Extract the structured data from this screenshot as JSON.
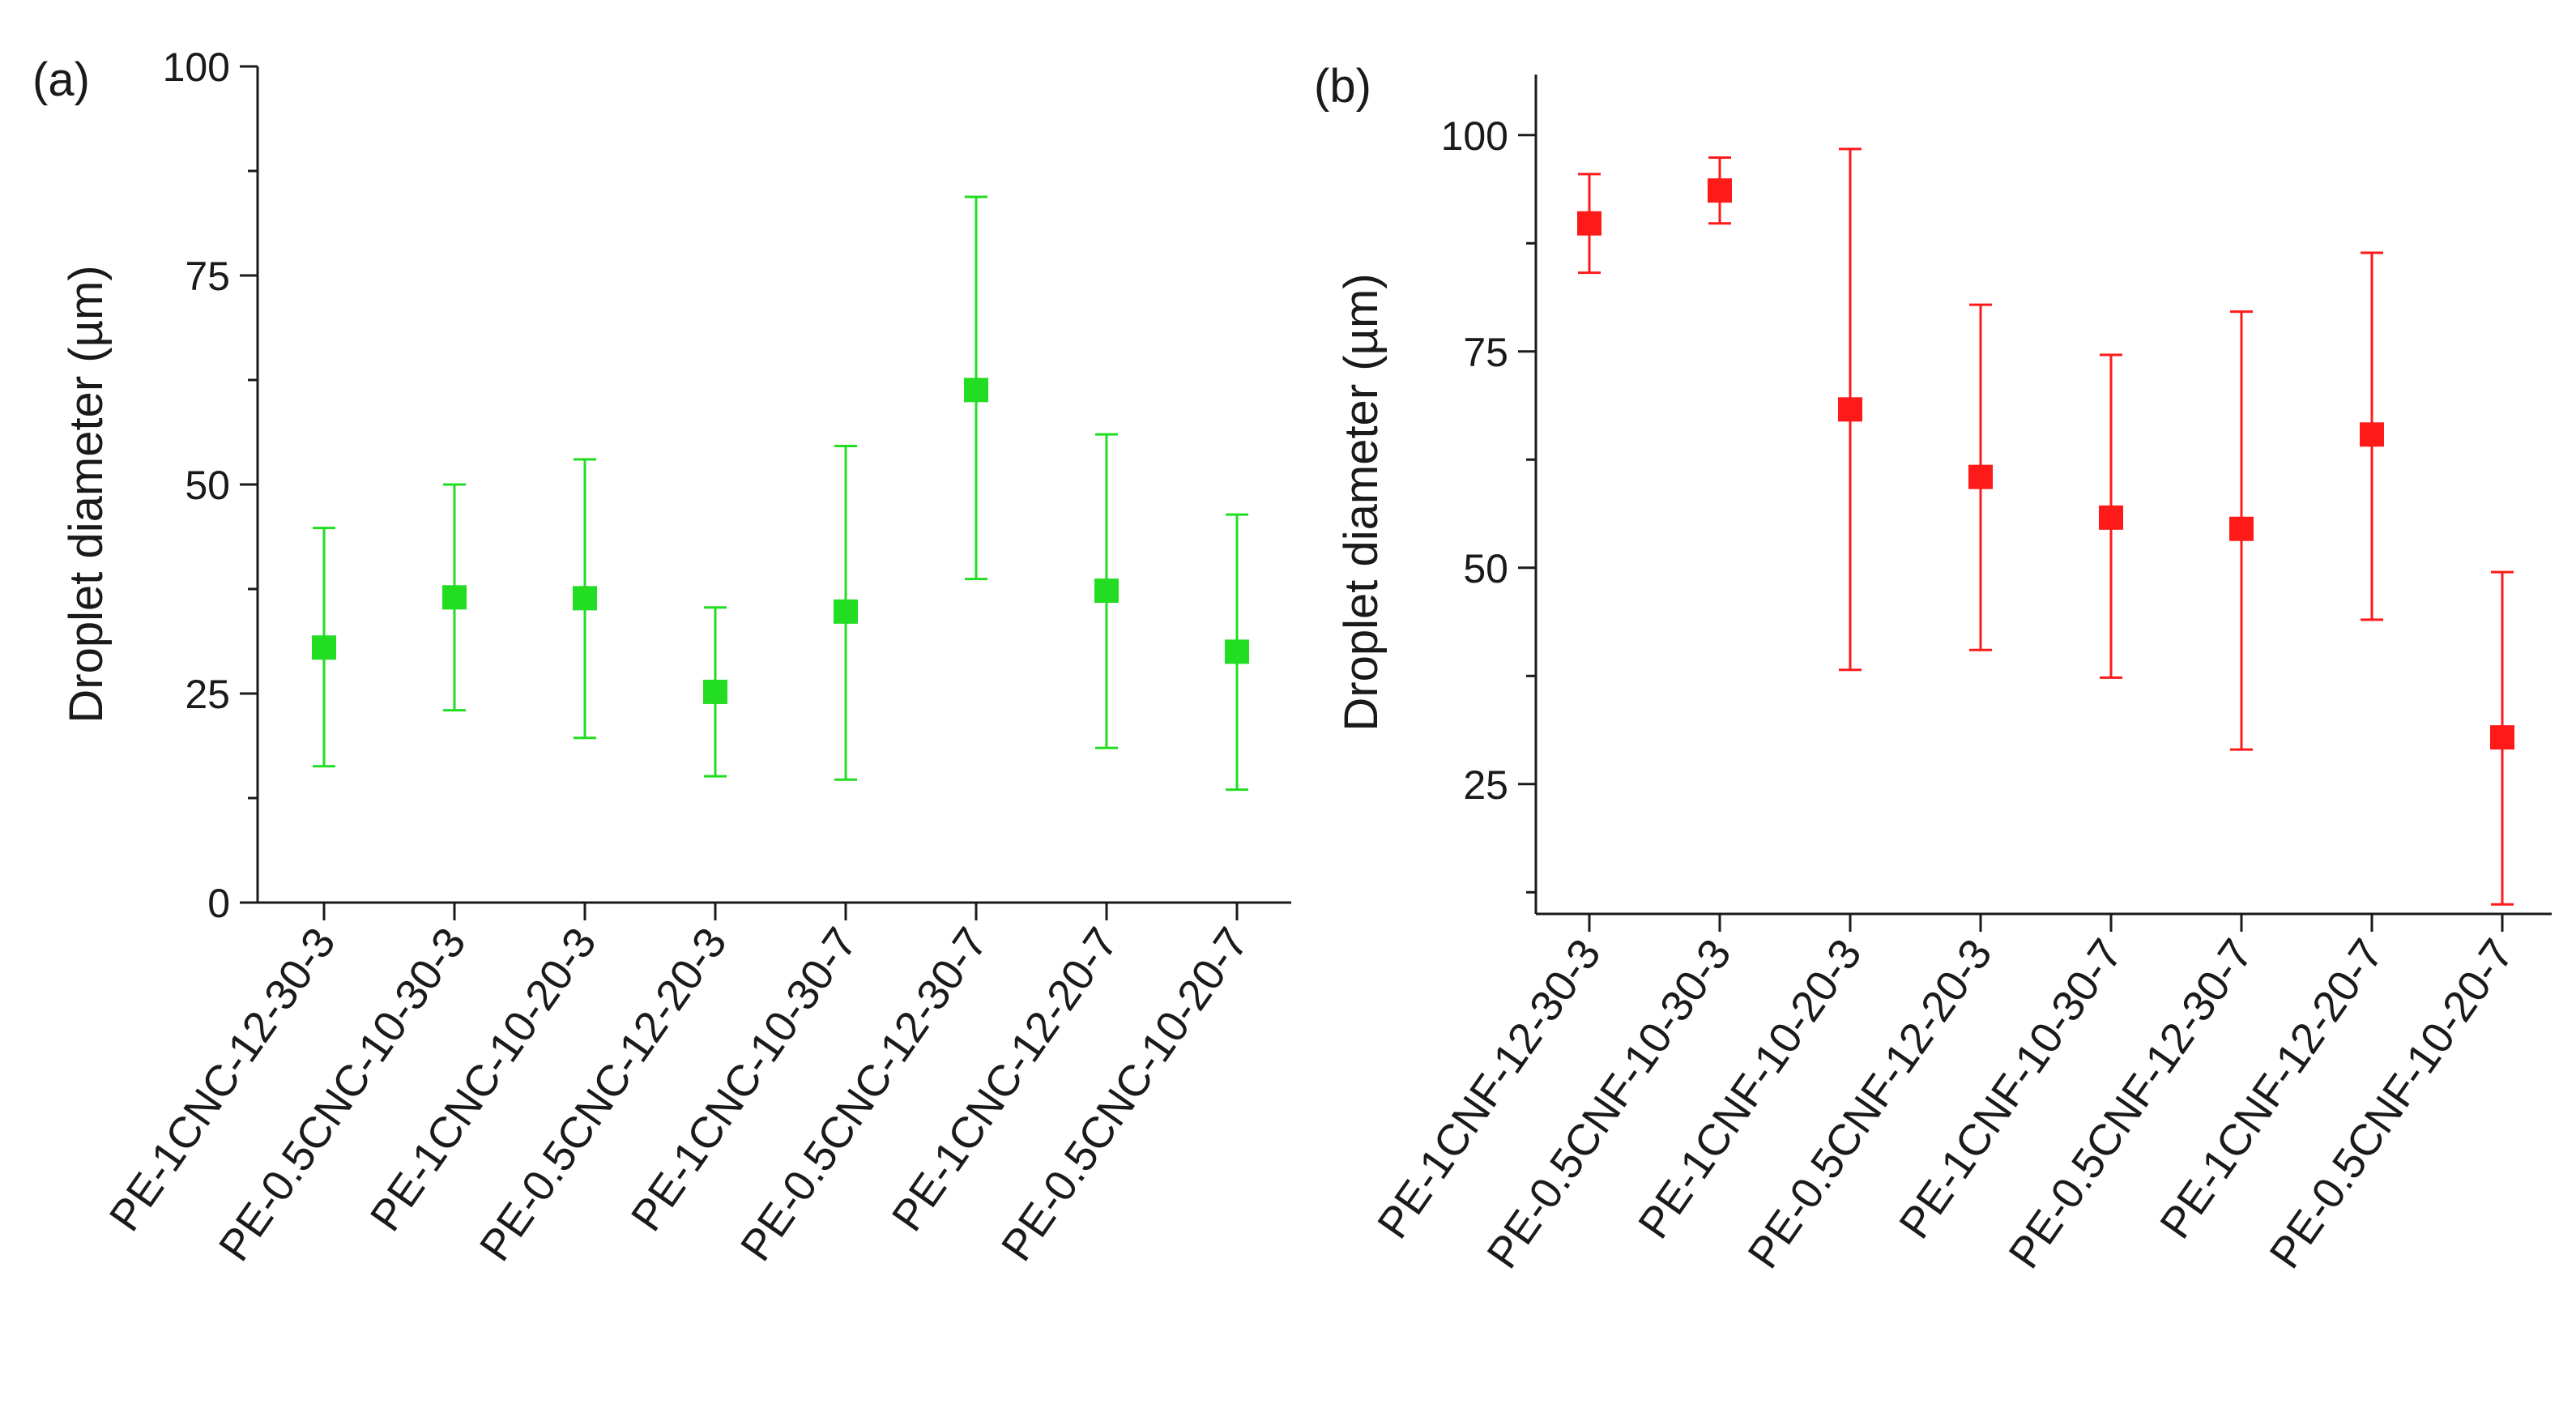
{
  "figure": {
    "background": "#ffffff"
  },
  "chart_data": [
    {
      "type": "scatter",
      "panel_label": "(a)",
      "ylabel": "Droplet diameter (µm)",
      "xlabel": "",
      "ylim": [
        0,
        100
      ],
      "yticks": [
        0,
        25,
        50,
        75,
        100
      ],
      "grid": false,
      "color": "#22dd22",
      "marker": "square",
      "categories": [
        "PE-1CNC-12-30-3",
        "PE-0.5CNC-10-30-3",
        "PE-1CNC-10-20-3",
        "PE-0.5CNC-12-20-3",
        "PE-1CNC-10-30-7",
        "PE-0.5CNC-12-30-7",
        "PE-1CNC-12-20-7",
        "PE-0.5CNC-10-20-7"
      ],
      "series": [
        {
          "name": "CNC",
          "values": [
            30.5,
            36.5,
            36.4,
            25.2,
            34.8,
            61.3,
            37.3,
            30.0
          ],
          "error_low": [
            16.3,
            23.0,
            19.7,
            15.1,
            14.7,
            38.7,
            18.5,
            13.5
          ],
          "error_high": [
            44.8,
            50.0,
            53.0,
            35.3,
            54.6,
            84.4,
            56.0,
            46.4
          ]
        }
      ]
    },
    {
      "type": "scatter",
      "panel_label": "(b)",
      "ylabel": "Droplet diameter (µm)",
      "xlabel": "",
      "ylim": [
        10,
        107
      ],
      "yticks": [
        25,
        50,
        75,
        100
      ],
      "grid": false,
      "color": "#ff1a1a",
      "marker": "square",
      "categories": [
        "PE-1CNF-12-30-3",
        "PE-0.5CNF-10-30-3",
        "PE-1CNF-10-20-3",
        "PE-0.5CNF-12-20-3",
        "PE-1CNF-10-30-7",
        "PE-0.5CNF-12-30-7",
        "PE-1CNF-12-20-7",
        "PE-0.5CNF-10-20-7"
      ],
      "series": [
        {
          "name": "CNF",
          "values": [
            89.8,
            93.6,
            68.3,
            60.5,
            55.8,
            54.5,
            65.4,
            30.4
          ],
          "error_low": [
            84.1,
            89.8,
            38.2,
            40.5,
            37.3,
            29.0,
            44.0,
            11.1
          ],
          "error_high": [
            95.5,
            97.4,
            98.4,
            80.4,
            74.6,
            79.6,
            86.4,
            49.5
          ]
        }
      ]
    }
  ]
}
